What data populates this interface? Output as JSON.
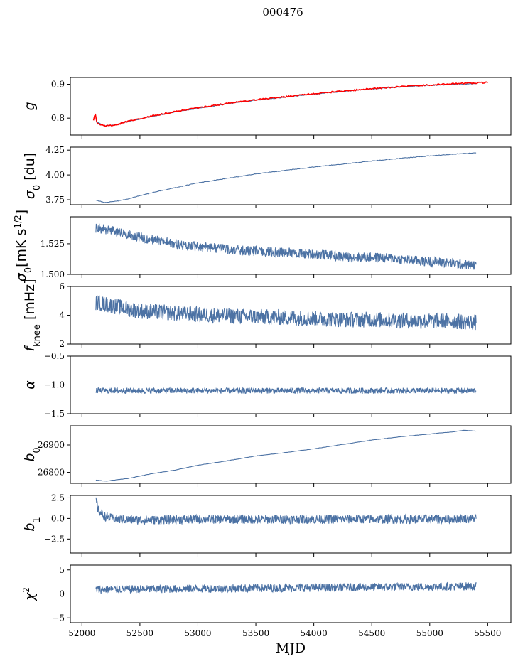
{
  "figure": {
    "title": "000476"
  },
  "chart_data": [
    {
      "type": "line",
      "ylabel": "g",
      "ylabel_math": [
        [
          "g",
          "i"
        ]
      ],
      "xlim": [
        51900,
        55700
      ],
      "ylim": [
        0.75,
        0.92
      ],
      "yticks": [
        0.8,
        0.9
      ],
      "series": [
        {
          "color": "#4c72a4",
          "points": [
            [
              52120,
              0.79
            ],
            [
              52200,
              0.777
            ],
            [
              52300,
              0.781
            ],
            [
              52400,
              0.79
            ],
            [
              52600,
              0.805
            ],
            [
              52800,
              0.818
            ],
            [
              53000,
              0.829
            ],
            [
              53250,
              0.842
            ],
            [
              53500,
              0.853
            ],
            [
              53750,
              0.862
            ],
            [
              54000,
              0.871
            ],
            [
              54250,
              0.879
            ],
            [
              54500,
              0.886
            ],
            [
              54750,
              0.892
            ],
            [
              55000,
              0.897
            ],
            [
              55250,
              0.9
            ],
            [
              55400,
              0.902
            ]
          ]
        },
        {
          "color": "#ff0000",
          "points": [
            [
              52100,
              0.795
            ],
            [
              52115,
              0.815
            ],
            [
              52130,
              0.785
            ],
            [
              52200,
              0.777
            ],
            [
              52300,
              0.781
            ],
            [
              52400,
              0.791
            ],
            [
              52600,
              0.806
            ],
            [
              52800,
              0.819
            ],
            [
              53000,
              0.83
            ],
            [
              53250,
              0.843
            ],
            [
              53500,
              0.854
            ],
            [
              53750,
              0.863
            ],
            [
              54000,
              0.872
            ],
            [
              54250,
              0.88
            ],
            [
              54500,
              0.887
            ],
            [
              54750,
              0.893
            ],
            [
              55000,
              0.898
            ],
            [
              55250,
              0.902
            ],
            [
              55500,
              0.905
            ]
          ]
        }
      ]
    },
    {
      "type": "line",
      "ylabel": "σ0 [du]",
      "ylabel_math": [
        [
          "σ",
          "i"
        ],
        [
          "0",
          "sub"
        ],
        [
          " [du]",
          ""
        ]
      ],
      "xlim": [
        51900,
        55700
      ],
      "ylim": [
        3.7,
        4.28
      ],
      "yticks": [
        3.75,
        4.0,
        4.25
      ],
      "series": [
        {
          "color": "#4c72a4",
          "points": [
            [
              52120,
              3.745
            ],
            [
              52200,
              3.722
            ],
            [
              52300,
              3.735
            ],
            [
              52400,
              3.76
            ],
            [
              52600,
              3.82
            ],
            [
              52800,
              3.87
            ],
            [
              53000,
              3.92
            ],
            [
              53250,
              3.965
            ],
            [
              53500,
              4.01
            ],
            [
              53750,
              4.045
            ],
            [
              54000,
              4.08
            ],
            [
              54250,
              4.11
            ],
            [
              54500,
              4.14
            ],
            [
              54750,
              4.168
            ],
            [
              55000,
              4.192
            ],
            [
              55250,
              4.213
            ],
            [
              55400,
              4.222
            ]
          ]
        }
      ]
    },
    {
      "type": "line",
      "ylabel": "σ0[mK s^1/2]",
      "ylabel_math": [
        [
          "σ",
          "i"
        ],
        [
          "0",
          "sub"
        ],
        [
          "[mK s",
          ""
        ],
        [
          "1/2",
          "sup"
        ],
        [
          "]",
          ""
        ]
      ],
      "xlim": [
        51900,
        55700
      ],
      "ylim": [
        1.5,
        1.547
      ],
      "yticks": [
        1.5,
        1.525
      ],
      "series": [
        {
          "color": "#4c72a4",
          "points": [
            [
              52120,
              1.538
            ],
            [
              52300,
              1.535
            ],
            [
              52500,
              1.53
            ],
            [
              52700,
              1.527
            ],
            [
              52900,
              1.523
            ],
            [
              53100,
              1.522
            ],
            [
              53300,
              1.52
            ],
            [
              53500,
              1.519
            ],
            [
              53700,
              1.518
            ],
            [
              53900,
              1.517
            ],
            [
              54100,
              1.516
            ],
            [
              54300,
              1.514
            ],
            [
              54500,
              1.514
            ],
            [
              54700,
              1.513
            ],
            [
              54900,
              1.511
            ],
            [
              55100,
              1.51
            ],
            [
              55300,
              1.508
            ],
            [
              55400,
              1.507
            ]
          ]
        }
      ]
    },
    {
      "type": "line",
      "ylabel": "fknee [mHz]",
      "ylabel_math": [
        [
          "f",
          "i"
        ],
        [
          "knee",
          "sub"
        ],
        [
          " [mHz]",
          ""
        ]
      ],
      "xlim": [
        51900,
        55700
      ],
      "ylim": [
        2,
        6
      ],
      "yticks": [
        2,
        4,
        6
      ],
      "series": [
        {
          "color": "#4c72a4",
          "points": [
            [
              52120,
              4.9
            ],
            [
              52300,
              4.6
            ],
            [
              52500,
              4.3
            ],
            [
              52700,
              4.2
            ],
            [
              52900,
              4.1
            ],
            [
              53100,
              4.0
            ],
            [
              53300,
              3.95
            ],
            [
              53500,
              3.9
            ],
            [
              53700,
              3.85
            ],
            [
              53900,
              3.8
            ],
            [
              54100,
              3.75
            ],
            [
              54300,
              3.7
            ],
            [
              54500,
              3.7
            ],
            [
              54700,
              3.65
            ],
            [
              54900,
              3.6
            ],
            [
              55100,
              3.6
            ],
            [
              55300,
              3.55
            ],
            [
              55400,
              3.5
            ]
          ]
        }
      ]
    },
    {
      "type": "line",
      "ylabel": "α",
      "ylabel_math": [
        [
          "α",
          "i"
        ]
      ],
      "xlim": [
        51900,
        55700
      ],
      "ylim": [
        -1.5,
        -0.5
      ],
      "yticks": [
        -1.5,
        -1.0,
        -0.5
      ],
      "series": [
        {
          "color": "#4c72a4",
          "points": [
            [
              52120,
              -1.1
            ],
            [
              55400,
              -1.1
            ]
          ]
        }
      ]
    },
    {
      "type": "line",
      "ylabel": "b0",
      "ylabel_math": [
        [
          "b",
          "i"
        ],
        [
          "0",
          "sub"
        ]
      ],
      "xlim": [
        51900,
        55700
      ],
      "ylim": [
        26760,
        26970
      ],
      "yticks": [
        26800,
        26900
      ],
      "series": [
        {
          "color": "#4c72a4",
          "points": [
            [
              52120,
              26772
            ],
            [
              52200,
              26768
            ],
            [
              52400,
              26778
            ],
            [
              52600,
              26795
            ],
            [
              52800,
              26808
            ],
            [
              53000,
              26826
            ],
            [
              53250,
              26842
            ],
            [
              53500,
              26860
            ],
            [
              53750,
              26872
            ],
            [
              54000,
              26886
            ],
            [
              54250,
              26902
            ],
            [
              54500,
              26918
            ],
            [
              54750,
              26930
            ],
            [
              55000,
              26940
            ],
            [
              55200,
              26948
            ],
            [
              55300,
              26954
            ],
            [
              55400,
              26950
            ]
          ]
        }
      ]
    },
    {
      "type": "line",
      "ylabel": "b1",
      "ylabel_math": [
        [
          "b",
          "i"
        ],
        [
          "1",
          "sub"
        ]
      ],
      "xlim": [
        51900,
        55700
      ],
      "ylim": [
        -4.2,
        2.8
      ],
      "yticks": [
        -2.5,
        0.0,
        2.5
      ],
      "series": [
        {
          "color": "#4c72a4",
          "points": [
            [
              52120,
              2.4
            ],
            [
              52140,
              1.0
            ],
            [
              52200,
              0.2
            ],
            [
              52300,
              -0.1
            ],
            [
              52500,
              -0.2
            ],
            [
              53000,
              -0.1
            ],
            [
              54000,
              -0.1
            ],
            [
              55000,
              -0.1
            ],
            [
              55400,
              0.0
            ]
          ]
        }
      ]
    },
    {
      "type": "line",
      "ylabel": "χ2",
      "ylabel_math": [
        [
          "χ",
          "i"
        ],
        [
          "2",
          "sup"
        ]
      ],
      "xlabel": "MJD",
      "xlim": [
        51900,
        55700
      ],
      "ylim": [
        -6,
        6
      ],
      "yticks": [
        -5,
        0,
        5
      ],
      "xticks": [
        52000,
        52500,
        53000,
        53500,
        54000,
        54500,
        55000,
        55500
      ],
      "series": [
        {
          "color": "#4c72a4",
          "points": [
            [
              52120,
              0.9
            ],
            [
              55400,
              1.6
            ]
          ]
        }
      ]
    }
  ]
}
